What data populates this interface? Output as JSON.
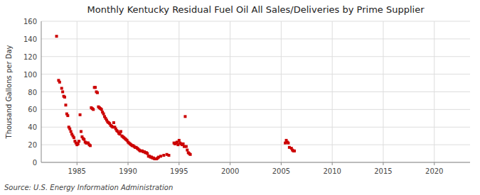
{
  "chart_data": {
    "type": "scatter",
    "title": "Monthly Kentucky Residual Fuel Oil All Sales/Deliveries by Prime Supplier",
    "ylabel": "Thousand Gallons per Day",
    "source": "Source: U.S. Energy Information Administration",
    "color": "#cc0000",
    "marker": "square",
    "grid": true,
    "xlim": [
      1981.5,
      2023.5
    ],
    "ylim": [
      0,
      160
    ],
    "xticks": [
      1985,
      1990,
      1995,
      2000,
      2005,
      2010,
      2015,
      2020
    ],
    "yticks": [
      0,
      20,
      40,
      60,
      80,
      100,
      120,
      140,
      160
    ],
    "x": [
      1983.0,
      1983.2,
      1983.3,
      1983.5,
      1983.6,
      1983.7,
      1983.8,
      1983.9,
      1984.0,
      1984.1,
      1984.2,
      1984.3,
      1984.4,
      1984.5,
      1984.6,
      1984.7,
      1984.8,
      1984.9,
      1985.0,
      1985.1,
      1985.2,
      1985.3,
      1985.4,
      1985.5,
      1985.6,
      1985.7,
      1985.8,
      1985.9,
      1986.0,
      1986.1,
      1986.2,
      1986.3,
      1986.4,
      1986.5,
      1986.6,
      1986.7,
      1986.8,
      1986.9,
      1987.0,
      1987.1,
      1987.2,
      1987.3,
      1987.4,
      1987.5,
      1987.6,
      1987.7,
      1987.8,
      1987.9,
      1988.0,
      1988.1,
      1988.2,
      1988.3,
      1988.4,
      1988.5,
      1988.6,
      1988.7,
      1988.8,
      1988.9,
      1989.0,
      1989.1,
      1989.2,
      1989.3,
      1989.4,
      1989.5,
      1989.6,
      1989.7,
      1989.8,
      1989.9,
      1990.0,
      1990.1,
      1990.2,
      1990.3,
      1990.4,
      1990.5,
      1990.6,
      1990.7,
      1990.8,
      1990.9,
      1991.0,
      1991.1,
      1991.2,
      1991.3,
      1991.4,
      1991.5,
      1991.6,
      1991.7,
      1991.8,
      1991.9,
      1992.0,
      1992.1,
      1992.2,
      1992.3,
      1992.4,
      1992.5,
      1992.6,
      1992.7,
      1992.8,
      1992.9,
      1993.0,
      1993.2,
      1993.5,
      1993.8,
      1994.0,
      1994.5,
      1994.6,
      1994.7,
      1994.8,
      1994.9,
      1995.0,
      1995.1,
      1995.2,
      1995.3,
      1995.4,
      1995.5,
      1995.6,
      1995.7,
      1995.8,
      1995.9,
      1996.0,
      1996.1,
      2005.4,
      2005.5,
      2005.6,
      2005.7,
      2005.8,
      2006.0,
      2006.1,
      2006.2,
      2006.3
    ],
    "values": [
      143,
      93,
      91,
      84,
      80,
      75,
      74,
      65,
      55,
      53,
      40,
      38,
      35,
      32,
      30,
      28,
      24,
      22,
      20,
      21,
      24,
      54,
      35,
      29,
      27,
      26,
      23,
      22,
      22,
      22,
      20,
      19,
      62,
      61,
      60,
      85,
      85,
      80,
      79,
      63,
      62,
      61,
      60,
      57,
      55,
      52,
      50,
      48,
      46,
      45,
      44,
      42,
      41,
      40,
      45,
      40,
      38,
      36,
      35,
      33,
      32,
      35,
      30,
      29,
      28,
      27,
      26,
      25,
      23,
      22,
      21,
      20,
      19,
      19,
      18,
      17,
      17,
      16,
      15,
      14,
      13,
      13,
      13,
      12,
      12,
      11,
      11,
      10,
      7,
      7,
      6,
      6,
      5,
      5,
      4,
      4,
      4,
      5,
      6,
      7,
      8,
      9,
      8,
      22,
      21,
      22,
      23,
      20,
      25,
      22,
      21,
      20,
      21,
      18,
      52,
      18,
      14,
      11,
      10,
      9,
      22,
      25,
      23,
      22,
      17,
      16,
      14,
      13,
      13
    ]
  }
}
